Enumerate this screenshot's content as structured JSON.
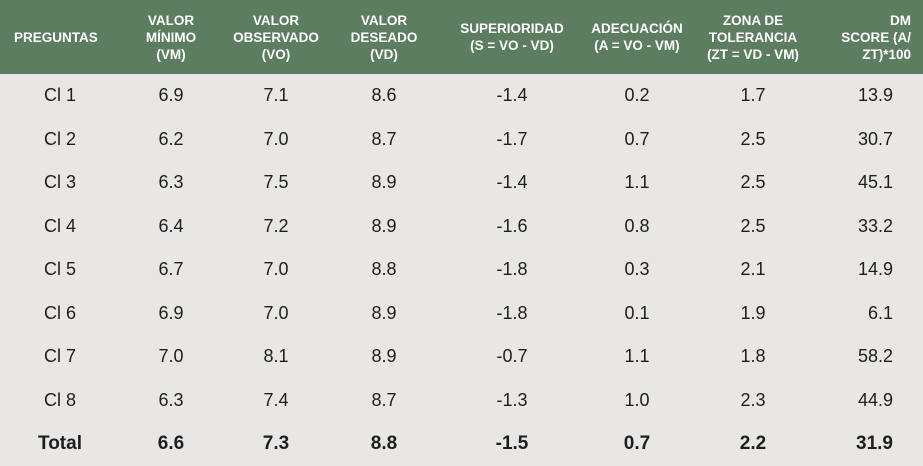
{
  "headers": [
    "PREGUNTAS",
    "VALOR\nMÍNIMO\n(VM)",
    "VALOR\nOBSERVADO\n(VO)",
    "VALOR\nDESEADO\n(VD)",
    "SUPERIORIDAD\n(S = VO - VD)",
    "ADECUACIÓN\n(A = VO - VM)",
    "ZONA DE\nTOLERANCIA\n(ZT = VD - VM)",
    "DM\nSCORE (A/\nZT)*100"
  ],
  "rows": [
    [
      "Cl 1",
      "6.9",
      "7.1",
      "8.6",
      "-1.4",
      "0.2",
      "1.7",
      "13.9"
    ],
    [
      "Cl 2",
      "6.2",
      "7.0",
      "8.7",
      "-1.7",
      "0.7",
      "2.5",
      "30.7"
    ],
    [
      "Cl 3",
      "6.3",
      "7.5",
      "8.9",
      "-1.4",
      "1.1",
      "2.5",
      "45.1"
    ],
    [
      "Cl 4",
      "6.4",
      "7.2",
      "8.9",
      "-1.6",
      "0.8",
      "2.5",
      "33.2"
    ],
    [
      "Cl 5",
      "6.7",
      "7.0",
      "8.8",
      "-1.8",
      "0.3",
      "2.1",
      "14.9"
    ],
    [
      "Cl 6",
      "6.9",
      "7.0",
      "8.9",
      "-1.8",
      "0.1",
      "1.9",
      "6.1"
    ],
    [
      "Cl 7",
      "7.0",
      "8.1",
      "8.9",
      "-0.7",
      "1.1",
      "1.8",
      "58.2"
    ],
    [
      "Cl 8",
      "6.3",
      "7.4",
      "8.7",
      "-1.3",
      "1.0",
      "2.3",
      "44.9"
    ]
  ],
  "total": [
    "Total",
    "6.6",
    "7.3",
    "8.8",
    "-1.5",
    "0.7",
    "2.2",
    "31.9"
  ],
  "colors": {
    "header_bg": "#5d7d61",
    "body_bg": "#e8e7e5",
    "header_text": "#ffffff"
  }
}
